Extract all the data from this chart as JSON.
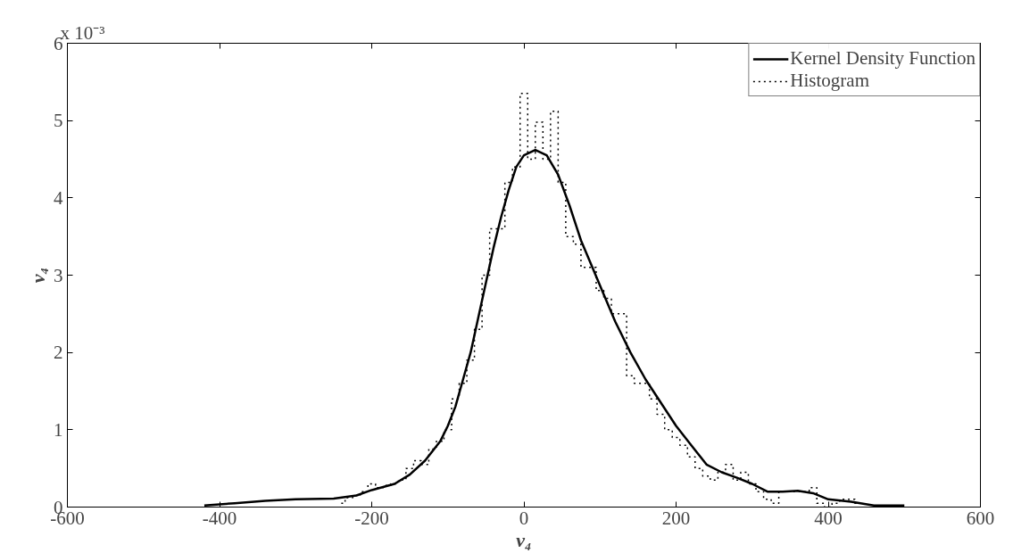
{
  "chart_data": {
    "type": "line",
    "xlabel": "v₄",
    "ylabel": "v₄",
    "annotations": [
      "x 10⁻³"
    ],
    "xlim": [
      -600,
      600
    ],
    "xticks": [
      -600,
      -400,
      -200,
      0,
      200,
      400,
      600
    ],
    "ylim": [
      0,
      6
    ],
    "yticks": [
      0,
      1,
      2,
      3,
      4,
      5,
      6
    ],
    "grid": false,
    "legend": "top right",
    "marker": "none",
    "series": [
      {
        "name": "Kernel Density Function",
        "color": "#000000",
        "line_style": "solid",
        "x": [
          -420,
          -380,
          -340,
          -300,
          -250,
          -220,
          -200,
          -170,
          -150,
          -130,
          -110,
          -100,
          -90,
          -80,
          -70,
          -60,
          -50,
          -40,
          -30,
          -20,
          -10,
          0,
          15,
          30,
          45,
          60,
          75,
          90,
          105,
          120,
          140,
          160,
          180,
          200,
          220,
          240,
          260,
          280,
          300,
          320,
          340,
          360,
          380,
          400,
          430,
          460,
          500
        ],
        "values": [
          0.02,
          0.05,
          0.08,
          0.1,
          0.11,
          0.15,
          0.22,
          0.3,
          0.42,
          0.6,
          0.85,
          1.05,
          1.3,
          1.65,
          2.0,
          2.45,
          2.9,
          3.35,
          3.75,
          4.1,
          4.4,
          4.55,
          4.62,
          4.55,
          4.3,
          3.9,
          3.45,
          3.1,
          2.75,
          2.4,
          2.0,
          1.65,
          1.35,
          1.05,
          0.8,
          0.55,
          0.45,
          0.38,
          0.3,
          0.2,
          0.2,
          0.21,
          0.18,
          0.1,
          0.07,
          0.02,
          0.02
        ]
      },
      {
        "name": "Histogram",
        "color": "#000000",
        "type": "step",
        "line_style": "dotted",
        "x": [
          -240,
          -230,
          -220,
          -210,
          -200,
          -190,
          -180,
          -170,
          -160,
          -150,
          -140,
          -130,
          -120,
          -110,
          -100,
          -90,
          -80,
          -70,
          -60,
          -50,
          -40,
          -30,
          -20,
          -10,
          0,
          10,
          20,
          30,
          40,
          50,
          60,
          70,
          80,
          90,
          100,
          110,
          120,
          130,
          140,
          150,
          160,
          170,
          180,
          190,
          200,
          210,
          220,
          230,
          240,
          250,
          260,
          270,
          280,
          290,
          300,
          310,
          320,
          330,
          340,
          350,
          360,
          370,
          380,
          390,
          400,
          410,
          420,
          430,
          440
        ],
        "values": [
          0.05,
          0.12,
          0.15,
          0.2,
          0.3,
          0.25,
          0.28,
          0.3,
          0.35,
          0.5,
          0.6,
          0.55,
          0.75,
          0.85,
          1.0,
          1.4,
          1.6,
          1.9,
          2.3,
          3.0,
          3.6,
          3.6,
          4.2,
          4.4,
          5.35,
          4.5,
          4.98,
          4.5,
          5.12,
          4.2,
          3.5,
          3.4,
          3.1,
          3.1,
          2.8,
          2.7,
          2.5,
          2.5,
          1.7,
          1.6,
          1.6,
          1.4,
          1.2,
          1.0,
          0.9,
          0.8,
          0.65,
          0.5,
          0.4,
          0.35,
          0.45,
          0.55,
          0.35,
          0.45,
          0.3,
          0.2,
          0.1,
          0.05,
          0.2,
          0.2,
          0.2,
          0.2,
          0.25,
          0.05,
          0.0,
          0.05,
          0.1,
          0.1,
          0.05
        ]
      }
    ]
  }
}
